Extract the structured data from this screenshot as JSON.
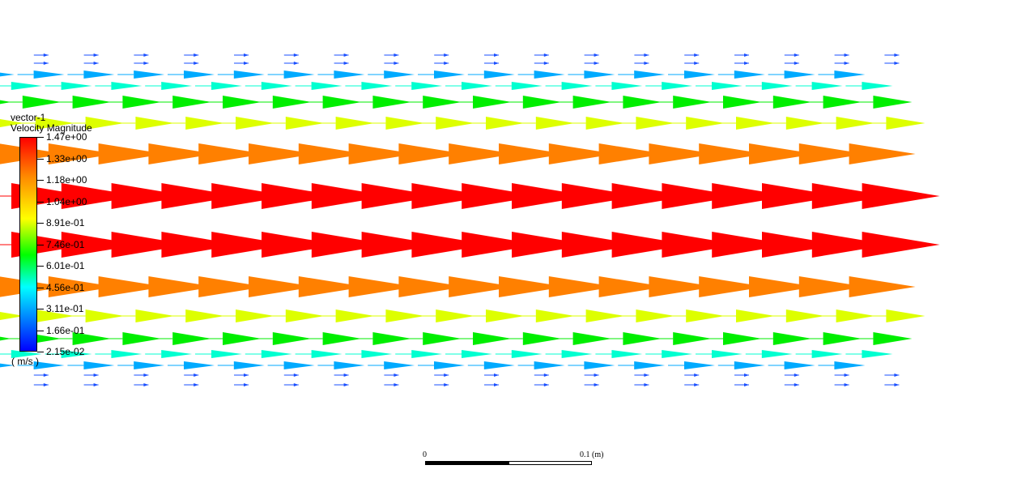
{
  "legend": {
    "title": "vector-1",
    "subtitle": "Velocity Magnitude",
    "unit": "( m/s )",
    "ticks": [
      "1.47e+00",
      "1.33e+00",
      "1.18e+00",
      "1.04e+00",
      "8.91e-01",
      "7.46e-01",
      "6.01e-01",
      "4.56e-01",
      "3.11e-01",
      "1.66e-01",
      "2.15e-02"
    ],
    "colors": [
      "#0000ff",
      "#00aaff",
      "#00ffff",
      "#00ff00",
      "#ffff00",
      "#ff8800",
      "#ff0000"
    ]
  },
  "scale_bar": {
    "start_label": "0",
    "end_label": "0.1 (m)"
  },
  "field": {
    "columns": 16,
    "rows": [
      {
        "color": "#1a4fff",
        "size": "tiny"
      },
      {
        "color": "#1a4fff",
        "size": "tiny"
      },
      {
        "color": "#00aaff",
        "size": "small"
      },
      {
        "color": "#00ffd0",
        "size": "small"
      },
      {
        "color": "#00ee00",
        "size": "medium"
      },
      {
        "color": "#ddff00",
        "size": "medium"
      },
      {
        "color": "#ff8000",
        "size": "large"
      },
      {
        "color": "#ff0000",
        "size": "xlarge"
      },
      {
        "color": "#ff0000",
        "size": "xlarge"
      },
      {
        "color": "#ff8000",
        "size": "large"
      },
      {
        "color": "#ddff00",
        "size": "medium"
      },
      {
        "color": "#00ee00",
        "size": "medium"
      },
      {
        "color": "#00ffd0",
        "size": "small"
      },
      {
        "color": "#00aaff",
        "size": "small"
      },
      {
        "color": "#1a4fff",
        "size": "tiny"
      },
      {
        "color": "#1a4fff",
        "size": "tiny"
      }
    ]
  }
}
